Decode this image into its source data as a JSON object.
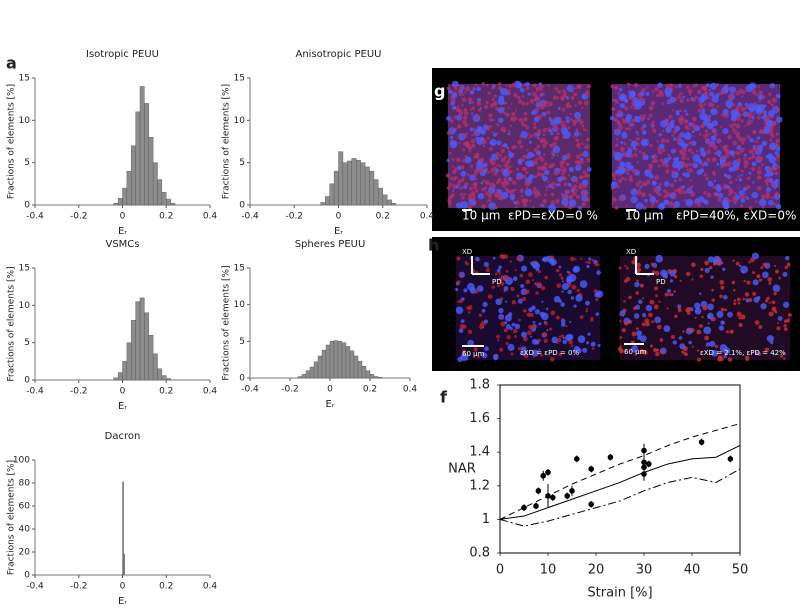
{
  "panel_labels": [
    "a",
    "g",
    "h",
    "f"
  ],
  "panel_g": [
    {
      "scale_bar": "10 µm",
      "strain": "εPD=εXD=0 %"
    },
    {
      "scale_bar": "10 µm",
      "strain": "εPD=40%, εXD=0%"
    }
  ],
  "panel_h": [
    {
      "xd": "XD",
      "pd": "PD",
      "scale_bar": "60 µm",
      "strain": "εXD = εPD = 0%"
    },
    {
      "xd": "XD",
      "pd": "PD",
      "scale_bar": "60 µm",
      "strain": "εXD = 2.1%, εPD = 42%"
    }
  ],
  "chart_data": [
    {
      "type": "histogram",
      "title": "Isotropic PEUU",
      "xlabel": "Eᵣ",
      "ylabel": "Fractions of elements [%]",
      "color": "#8c8c8c",
      "bins": [
        -0.04,
        -0.02,
        0,
        0.02,
        0.04,
        0.06,
        0.08,
        0.1,
        0.12,
        0.14,
        0.16,
        0.18,
        0.2,
        0.22,
        0.24
      ],
      "counts": [
        0.2,
        0.8,
        2,
        4,
        7,
        11,
        14,
        12,
        8,
        5,
        3,
        1.5,
        0.7,
        0.2
      ],
      "xlim": [
        -0.4,
        0.4
      ],
      "ylim": [
        0,
        15
      ],
      "xticks": [
        -0.4,
        -0.2,
        0,
        0.2,
        0.4
      ],
      "yticks": [
        0,
        5,
        10,
        15
      ]
    },
    {
      "type": "histogram",
      "title": "Anisotropic PEUU",
      "xlabel": "Eᵣ",
      "ylabel": "Fractions of elements [%]",
      "color": "#8c8c8c",
      "bins": [
        -0.08,
        -0.06,
        -0.04,
        -0.02,
        0,
        0.02,
        0.04,
        0.06,
        0.08,
        0.1,
        0.12,
        0.14,
        0.16,
        0.18,
        0.2,
        0.22,
        0.24,
        0.26
      ],
      "counts": [
        0.3,
        1,
        2.5,
        4,
        6.3,
        5,
        5.2,
        5.5,
        5.3,
        5,
        4.5,
        4,
        3,
        2,
        1.2,
        0.6,
        0.2
      ],
      "xlim": [
        -0.4,
        0.4
      ],
      "ylim": [
        0,
        15
      ],
      "xticks": [
        -0.4,
        -0.2,
        0,
        0.2,
        0.4
      ],
      "yticks": [
        0,
        5,
        10,
        15
      ]
    },
    {
      "type": "histogram",
      "title": "VSMCs",
      "xlabel": "Eᵣ",
      "ylabel": "Fractions of elements [%]",
      "color": "#8c8c8c",
      "bins": [
        -0.04,
        -0.02,
        0,
        0.02,
        0.04,
        0.06,
        0.08,
        0.1,
        0.12,
        0.14,
        0.16,
        0.18,
        0.2,
        0.22
      ],
      "counts": [
        0.3,
        1,
        2.5,
        5,
        8,
        10.5,
        11,
        9,
        6,
        3.5,
        1.5,
        0.6,
        0.2
      ],
      "xlim": [
        -0.4,
        0.4
      ],
      "ylim": [
        0,
        15
      ],
      "xticks": [
        -0.4,
        -0.2,
        0,
        0.2,
        0.4
      ],
      "yticks": [
        0,
        5,
        10,
        15
      ]
    },
    {
      "type": "histogram",
      "title": "Spheres PEUU",
      "xlabel": "Eᵣ",
      "ylabel": "Fractions of elements [%]",
      "color": "#8c8c8c",
      "bins": [
        -0.16,
        -0.14,
        -0.12,
        -0.1,
        -0.08,
        -0.06,
        -0.04,
        -0.02,
        0,
        0.02,
        0.04,
        0.06,
        0.08,
        0.1,
        0.12,
        0.14,
        0.16,
        0.18,
        0.2,
        0.22,
        0.24,
        0.26
      ],
      "counts": [
        0.2,
        0.5,
        1,
        1.5,
        2.2,
        3,
        3.8,
        4.5,
        5,
        5.1,
        5,
        4.8,
        4.3,
        3.7,
        3,
        2.3,
        1.6,
        1,
        0.5,
        0.2,
        0.1
      ],
      "xlim": [
        -0.4,
        0.4
      ],
      "ylim": [
        0,
        15
      ],
      "xticks": [
        -0.4,
        -0.2,
        0,
        0.2,
        0.4
      ],
      "yticks": [
        0,
        5,
        10,
        15
      ]
    },
    {
      "type": "histogram",
      "title": "Dacron",
      "xlabel": "Eᵣ",
      "ylabel": "Fractions of elements [%]",
      "color": "#8c8c8c",
      "bins": [
        0,
        0.005,
        0.01
      ],
      "counts": [
        81,
        18
      ],
      "xlim": [
        -0.4,
        0.4
      ],
      "ylim": [
        0,
        100
      ],
      "xticks": [
        -0.4,
        -0.2,
        0,
        0.2,
        0.4
      ],
      "yticks": [
        0,
        20,
        40,
        60,
        80,
        100
      ]
    },
    {
      "type": "scatter",
      "xlabel": "Strain [%]",
      "ylabel": "NAR",
      "xlim": [
        0,
        50
      ],
      "ylim": [
        0.8,
        1.8
      ],
      "xticks": [
        0,
        10,
        20,
        30,
        40,
        50
      ],
      "yticks": [
        0.8,
        1,
        1.2,
        1.4,
        1.6,
        1.8
      ],
      "series": [
        {
          "mode": "markers",
          "color": "#000000",
          "x": [
            5,
            7.5,
            8,
            9,
            10,
            10,
            11,
            14,
            15,
            16,
            19,
            19,
            23,
            30,
            30,
            30,
            30,
            31,
            42,
            48
          ],
          "y": [
            1.07,
            1.08,
            1.17,
            1.26,
            1.28,
            1.14,
            1.13,
            1.14,
            1.17,
            1.36,
            1.09,
            1.3,
            1.37,
            1.41,
            1.34,
            1.31,
            1.27,
            1.33,
            1.46,
            1.36
          ],
          "errors": [
            0.02,
            0.02,
            0.02,
            0.03,
            0.02,
            0.07,
            0.02,
            0.02,
            0.03,
            0.02,
            0.02,
            0.02,
            0.02,
            0.04,
            0.03,
            0.03,
            0.04,
            0.02,
            0.02,
            0.02
          ]
        },
        {
          "mode": "line",
          "dash": "solid",
          "color": "#000000",
          "x": [
            0,
            5,
            10,
            15,
            20,
            25,
            30,
            35,
            40,
            45,
            50
          ],
          "y": [
            1,
            1.02,
            1.07,
            1.12,
            1.17,
            1.22,
            1.28,
            1.33,
            1.36,
            1.37,
            1.44
          ]
        },
        {
          "mode": "line",
          "dash": "dash",
          "color": "#000000",
          "x": [
            0,
            5,
            10,
            15,
            20,
            25,
            30,
            35,
            40,
            45,
            50
          ],
          "y": [
            1,
            1.07,
            1.14,
            1.21,
            1.27,
            1.33,
            1.38,
            1.44,
            1.49,
            1.53,
            1.57
          ]
        },
        {
          "mode": "line",
          "dash": "dashdot",
          "color": "#000000",
          "x": [
            0,
            5,
            10,
            15,
            20,
            25,
            30,
            35,
            40,
            45,
            50
          ],
          "y": [
            1,
            0.96,
            0.99,
            1.03,
            1.07,
            1.11,
            1.17,
            1.22,
            1.25,
            1.22,
            1.3
          ]
        }
      ]
    }
  ]
}
